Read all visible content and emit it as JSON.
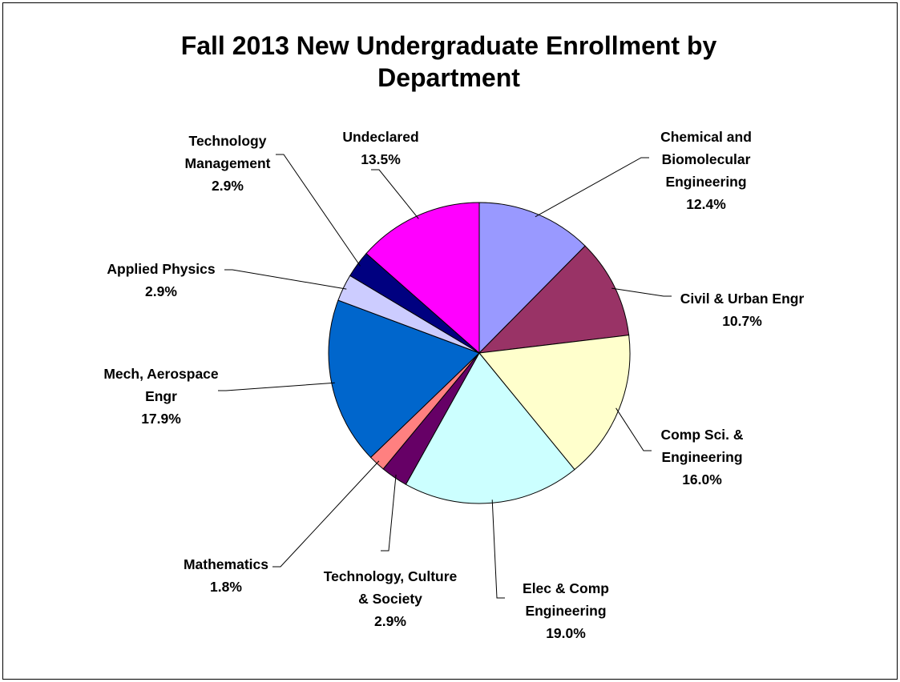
{
  "chart_data": {
    "type": "pie",
    "title_lines": [
      "Fall 2013 New Undergraduate Enrollment by",
      "Department"
    ],
    "slices": [
      {
        "label": [
          "Chemical and",
          "Biomolecular",
          "Engineering"
        ],
        "value": 12.4,
        "display": "12.4%",
        "color": "#9999ff"
      },
      {
        "label": [
          "Civil & Urban Engr"
        ],
        "value": 10.7,
        "display": "10.7%",
        "color": "#993366"
      },
      {
        "label": [
          "Comp Sci. &",
          "Engineering"
        ],
        "value": 16.0,
        "display": "16.0%",
        "color": "#ffffcc"
      },
      {
        "label": [
          "Elec & Comp",
          "Engineering"
        ],
        "value": 19.0,
        "display": "19.0%",
        "color": "#ccffff"
      },
      {
        "label": [
          "Technology, Culture",
          "& Society"
        ],
        "value": 2.9,
        "display": "2.9%",
        "color": "#660066"
      },
      {
        "label": [
          "Mathematics"
        ],
        "value": 1.8,
        "display": "1.8%",
        "color": "#ff8080"
      },
      {
        "label": [
          "Mech, Aerospace",
          "Engr"
        ],
        "value": 17.9,
        "display": "17.9%",
        "color": "#0066cc"
      },
      {
        "label": [
          "Applied Physics"
        ],
        "value": 2.9,
        "display": "2.9%",
        "color": "#ccccff"
      },
      {
        "label": [
          "Technology",
          "Management"
        ],
        "value": 2.9,
        "display": "2.9%",
        "color": "#000080"
      },
      {
        "label": [
          "Undeclared"
        ],
        "value": 13.5,
        "display": "13.5%",
        "color": "#ff00ff"
      }
    ]
  }
}
